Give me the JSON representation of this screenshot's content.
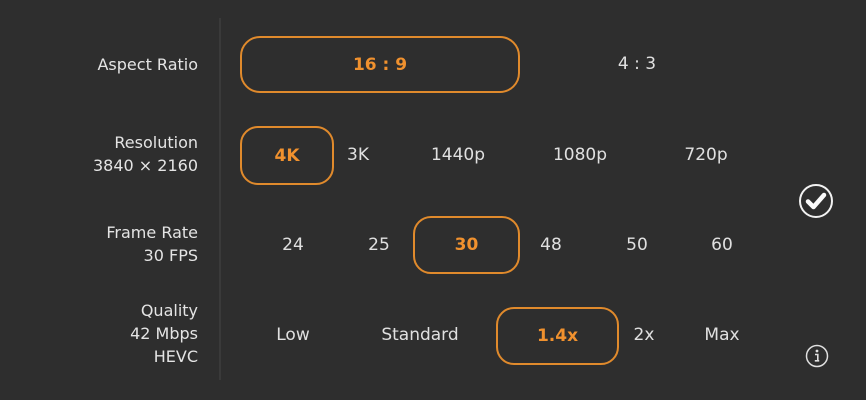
{
  "aspect_ratio": {
    "label": "Aspect Ratio",
    "options": [
      "16 : 9",
      "4 : 3"
    ],
    "selected": "16 : 9"
  },
  "resolution": {
    "label": "Resolution",
    "value": "3840 × 2160",
    "options": [
      "4K",
      "3K",
      "1440p",
      "1080p",
      "720p"
    ],
    "selected": "4K"
  },
  "frame_rate": {
    "label": "Frame Rate",
    "value": "30 FPS",
    "options": [
      "24",
      "25",
      "30",
      "48",
      "50",
      "60"
    ],
    "selected": "30"
  },
  "quality": {
    "label": "Quality",
    "value": "42 Mbps",
    "codec": "HEVC",
    "options": [
      "Low",
      "Standard",
      "1.4x",
      "2x",
      "Max"
    ],
    "selected": "1.4x"
  },
  "icons": {
    "confirm": "checkmark-circle-icon",
    "info": "info-circle-icon"
  },
  "colors": {
    "accent": "#e08a2c",
    "background": "#2e2e2e"
  }
}
